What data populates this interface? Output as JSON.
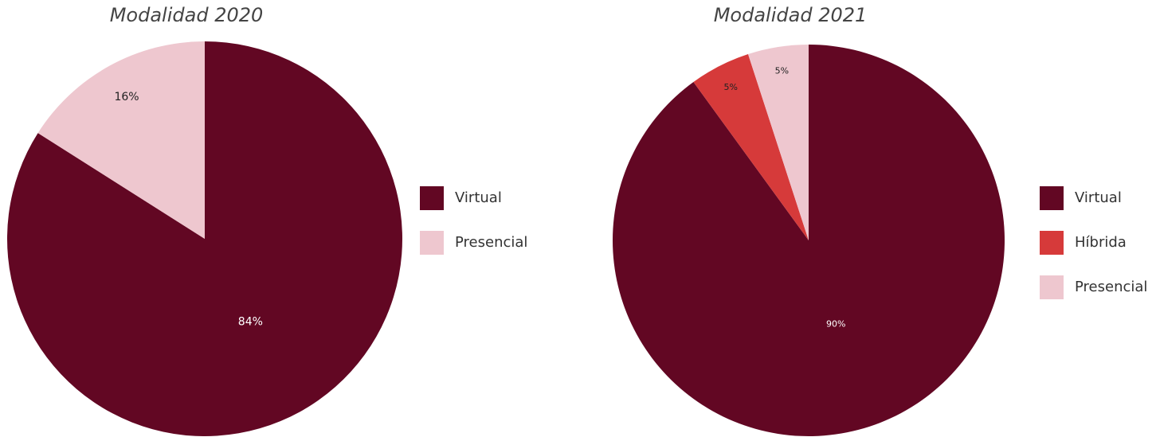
{
  "chart_data": [
    {
      "type": "pie",
      "title": "Modalidad 2020",
      "categories": [
        "Virtual",
        "Presencial"
      ],
      "values": [
        84,
        16
      ],
      "value_labels": [
        "84%",
        "16%"
      ],
      "colors": [
        "#620723",
        "#eec7cf"
      ],
      "legend": "right"
    },
    {
      "type": "pie",
      "title": "Modalidad 2021",
      "categories": [
        "Virtual",
        "Híbrida",
        "Presencial"
      ],
      "values": [
        90,
        5,
        5
      ],
      "value_labels": [
        "90%",
        "5%",
        "5%"
      ],
      "colors": [
        "#620723",
        "#d63a3a",
        "#eec7cf"
      ],
      "legend": "right"
    }
  ]
}
